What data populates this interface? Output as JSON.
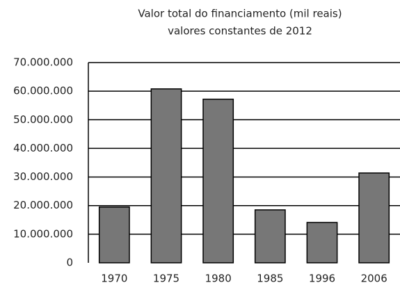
{
  "chart_data": {
    "type": "bar",
    "title": "Valor total do financiamento (mil reais)",
    "subtitle": "valores constantes de 2012",
    "categories": [
      "1970",
      "1975",
      "1980",
      "1985",
      "1996",
      "2006"
    ],
    "values": [
      19500000,
      60800000,
      57200000,
      18500000,
      14100000,
      31400000
    ],
    "color": "#777777",
    "ylim": [
      0,
      70000000
    ],
    "yticks": [
      0,
      {
        "value": 10000000,
        "label": "10.000.000"
      },
      {
        "value": 20000000,
        "label": "20.000.000"
      },
      {
        "value": 30000000,
        "label": "30.000.000"
      },
      {
        "value": 40000000,
        "label": "40.000.000"
      },
      {
        "value": 50000000,
        "label": "50.000.000"
      },
      {
        "value": 60000000,
        "label": "60.000.000"
      },
      {
        "value": 70000000,
        "label": "70.000.000"
      }
    ],
    "grid": true
  }
}
